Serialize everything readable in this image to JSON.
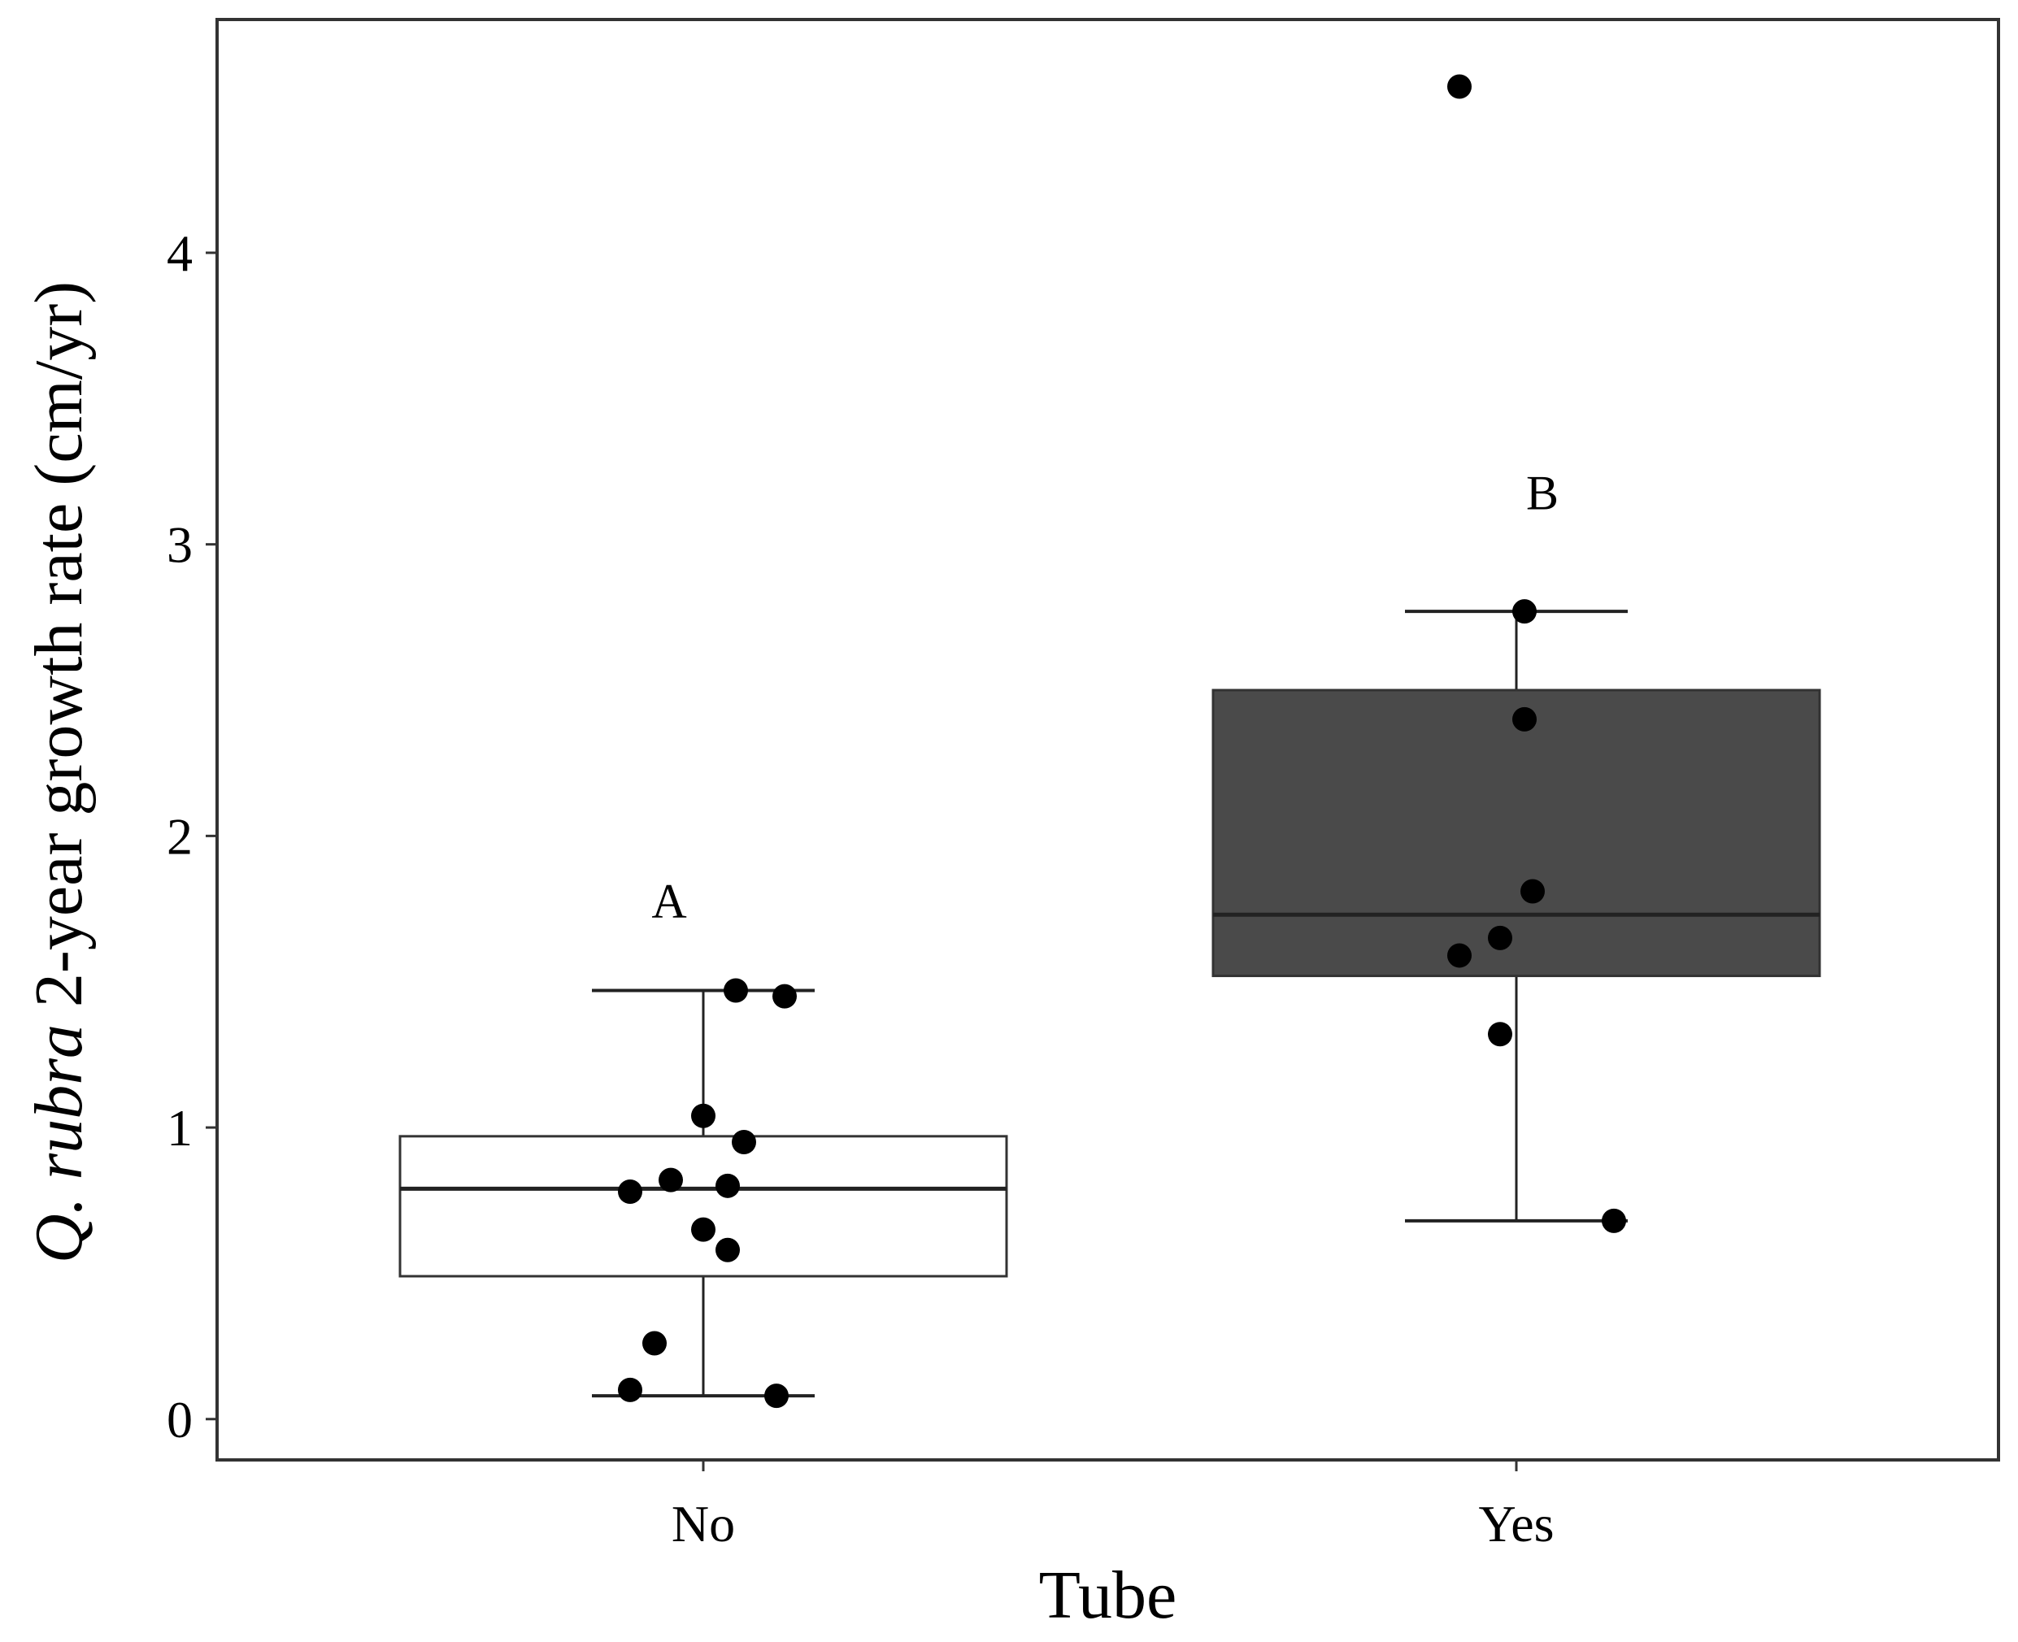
{
  "chart_data": {
    "type": "boxplot",
    "xlabel": "Tube",
    "ylabel_italic": "Q. rubra",
    "ylabel_rest": " 2-year growth rate (cm/yr)",
    "ylim": [
      -0.14,
      4.8
    ],
    "yticks": [
      0,
      1,
      2,
      3,
      4
    ],
    "categories": [
      "No",
      "Yes"
    ],
    "grid": false,
    "groups": [
      {
        "category": "No",
        "fill": "#ffffff",
        "letter": "A",
        "letter_y": 1.72,
        "whisker_low": 0.08,
        "q1": 0.49,
        "median": 0.79,
        "q3": 0.97,
        "whisker_high": 1.47,
        "points": [
          {
            "dx": 0.04,
            "y": 1.47
          },
          {
            "dx": 0.1,
            "y": 1.45
          },
          {
            "dx": 0.0,
            "y": 1.04
          },
          {
            "dx": 0.05,
            "y": 0.95
          },
          {
            "dx": -0.04,
            "y": 0.82
          },
          {
            "dx": -0.09,
            "y": 0.78
          },
          {
            "dx": 0.03,
            "y": 0.8
          },
          {
            "dx": 0.0,
            "y": 0.65
          },
          {
            "dx": 0.03,
            "y": 0.58
          },
          {
            "dx": -0.06,
            "y": 0.26
          },
          {
            "dx": -0.09,
            "y": 0.1
          },
          {
            "dx": 0.09,
            "y": 0.08
          }
        ]
      },
      {
        "category": "Yes",
        "fill": "#4a4a4a",
        "letter": "B",
        "letter_y": 3.12,
        "whisker_low": 0.68,
        "q1": 1.52,
        "median": 1.73,
        "q3": 2.5,
        "whisker_high": 2.77,
        "points": [
          {
            "dx": -0.07,
            "y": 4.57
          },
          {
            "dx": 0.01,
            "y": 2.77
          },
          {
            "dx": 0.01,
            "y": 2.4
          },
          {
            "dx": 0.02,
            "y": 1.81
          },
          {
            "dx": -0.02,
            "y": 1.65
          },
          {
            "dx": -0.07,
            "y": 1.59
          },
          {
            "dx": -0.02,
            "y": 1.32
          },
          {
            "dx": 0.12,
            "y": 0.68
          }
        ]
      }
    ]
  }
}
